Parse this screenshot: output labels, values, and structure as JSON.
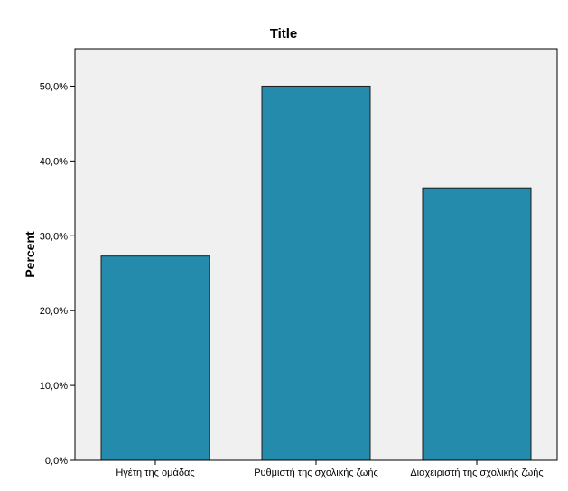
{
  "chart_data": {
    "type": "bar",
    "title": "Title",
    "xlabel": "",
    "ylabel": "Percent",
    "categories": [
      "Ηγέτη της ομάδας",
      "Ρυθμιστή της σχολικής ζωής",
      "Διαχειριστή της σχολικής ζωής"
    ],
    "values": [
      27.3,
      50.0,
      36.4
    ],
    "y_ticks": [
      0,
      10,
      20,
      30,
      40,
      50
    ],
    "y_tick_labels": [
      "0,0%",
      "10,0%",
      "20,0%",
      "30,0%",
      "40,0%",
      "50,0%"
    ],
    "ylim": [
      0,
      55
    ],
    "grid": false,
    "colors": {
      "plot_background": "#f0f0f0",
      "bar_fill": "#248bac",
      "bar_stroke": "#1d1d1d",
      "axis": "#000000"
    }
  }
}
